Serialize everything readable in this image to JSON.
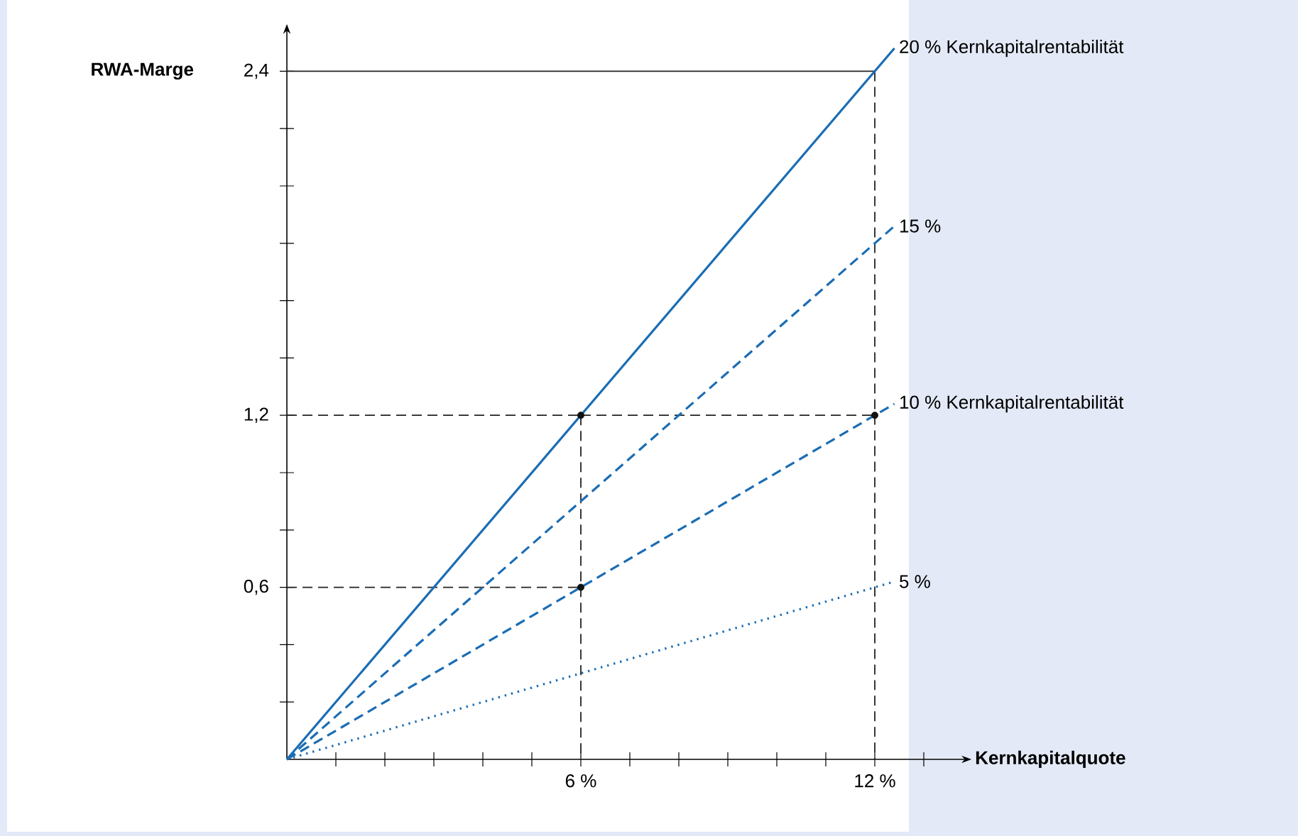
{
  "chart_data": {
    "type": "line",
    "xlabel": "Kernkapitalquote",
    "ylabel": "RWA-Marge",
    "xlim": [
      0,
      13.77
    ],
    "ylim": [
      0,
      2.53
    ],
    "xticks": [
      {
        "value": 1,
        "label": null
      },
      {
        "value": 2,
        "label": null
      },
      {
        "value": 3,
        "label": null
      },
      {
        "value": 4,
        "label": null
      },
      {
        "value": 5,
        "label": null
      },
      {
        "value": 6,
        "label": "6 %"
      },
      {
        "value": 7,
        "label": null
      },
      {
        "value": 8,
        "label": null
      },
      {
        "value": 9,
        "label": null
      },
      {
        "value": 10,
        "label": null
      },
      {
        "value": 11,
        "label": null
      },
      {
        "value": 12,
        "label": "12 %"
      },
      {
        "value": 13,
        "label": null
      }
    ],
    "yticks": [
      {
        "value": 0.2,
        "label": null
      },
      {
        "value": 0.4,
        "label": null
      },
      {
        "value": 0.6,
        "label": "0,6"
      },
      {
        "value": 0.8,
        "label": null
      },
      {
        "value": 1.0,
        "label": null
      },
      {
        "value": 1.2,
        "label": "1,2"
      },
      {
        "value": 1.4,
        "label": null
      },
      {
        "value": 1.6,
        "label": null
      },
      {
        "value": 1.8,
        "label": null
      },
      {
        "value": 2.0,
        "label": null
      },
      {
        "value": 2.2,
        "label": null
      },
      {
        "value": 2.4,
        "label": "2,4"
      }
    ],
    "series": [
      {
        "color": "#222222",
        "line_style": "solid",
        "x": [
          0,
          12
        ],
        "values": [
          2.4,
          2.4
        ]
      },
      {
        "color": "#222222",
        "line_style": "dashed",
        "x": [
          0,
          6
        ],
        "values": [
          1.2,
          1.2
        ]
      },
      {
        "color": "#222222",
        "line_style": "dashed",
        "x": [
          6,
          12
        ],
        "values": [
          1.2,
          1.2
        ]
      },
      {
        "color": "#222222",
        "line_style": "dashed",
        "x": [
          0,
          6
        ],
        "values": [
          0.6,
          0.6
        ]
      },
      {
        "color": "#222222",
        "line_style": "dashed",
        "x": [
          6,
          6
        ],
        "values": [
          1.2,
          0
        ]
      },
      {
        "color": "#222222",
        "line_style": "dashed",
        "x": [
          12,
          12
        ],
        "values": [
          2.4,
          0
        ]
      },
      {
        "name": "20 % Kernkapitalrentabilität",
        "color": "#1b6db3",
        "line_style": "solid",
        "x": [
          0,
          12.4
        ],
        "values": [
          0,
          2.48
        ]
      },
      {
        "name": "15 %",
        "color": "#1b6db3",
        "line_style": "dashed",
        "x": [
          0,
          12.4
        ],
        "values": [
          0,
          1.86
        ]
      },
      {
        "name": "10 % Kernkapitalrentabilität",
        "color": "#1b6db3",
        "line_style": "dashed",
        "x": [
          0,
          12.4
        ],
        "values": [
          0,
          1.24
        ]
      },
      {
        "name": "5 %",
        "color": "#1b6db3",
        "line_style": "dotted",
        "x": [
          0,
          12.4
        ],
        "values": [
          0,
          0.62
        ]
      },
      {
        "type": "scatter",
        "color": "#111111",
        "marker": "circle",
        "x": [
          6,
          6,
          12
        ],
        "values": [
          1.2,
          0.6,
          1.2
        ]
      }
    ]
  }
}
